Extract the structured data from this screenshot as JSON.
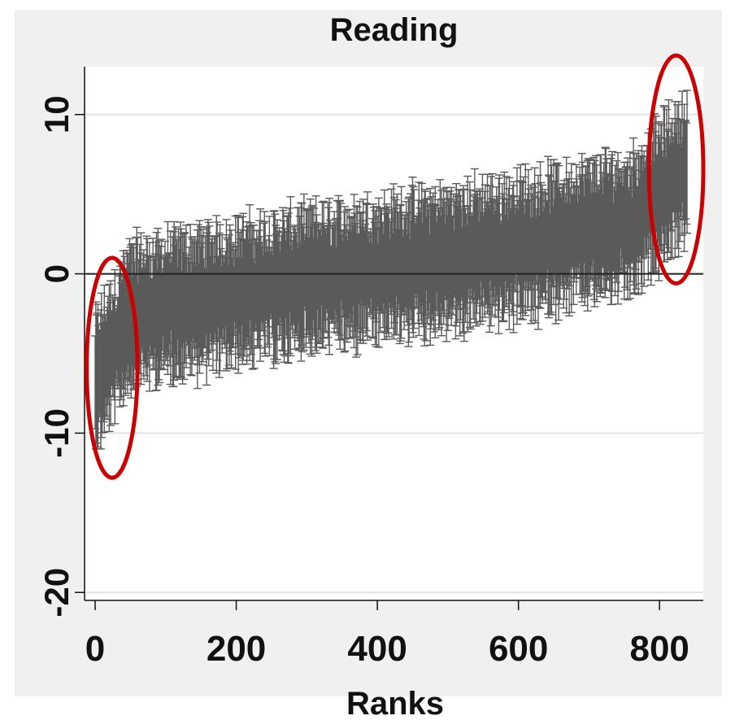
{
  "chart_data": {
    "type": "scatter",
    "title": "Reading",
    "xlabel": "Ranks",
    "ylabel": "",
    "xlim": [
      -15,
      862
    ],
    "ylim": [
      -20.5,
      13
    ],
    "x_ticks": [
      0,
      200,
      400,
      600,
      800
    ],
    "y_ticks": [
      -20,
      -10,
      0,
      10
    ],
    "y_gridlines": true,
    "x_gridlines": false,
    "reference_line_y": 0,
    "n_points": 840,
    "point_estimate_trend": [
      {
        "rank": 0,
        "value": -7
      },
      {
        "rank": 50,
        "value": -2.5
      },
      {
        "rank": 200,
        "value": -1.2
      },
      {
        "rank": 400,
        "value": 0.3
      },
      {
        "rank": 600,
        "value": 1.6
      },
      {
        "rank": 760,
        "value": 3.2
      },
      {
        "rank": 840,
        "value": 6.8
      }
    ],
    "ci_half_width_range": [
      2,
      5
    ],
    "extreme_points": {
      "min_lower": -11,
      "max_upper": 12
    },
    "annotations": [
      {
        "type": "ellipse",
        "color": "#cc0000",
        "rank_range": [
          -12,
          60
        ],
        "value_range": [
          -12.8,
          1
        ]
      },
      {
        "type": "ellipse",
        "color": "#cc0000",
        "rank_range": [
          785,
          862
        ],
        "value_range": [
          -0.6,
          13.7
        ]
      }
    ],
    "colors": {
      "background": "#f0f0f0",
      "plot_area": "#ffffff",
      "error_bar": "#5a5a5a",
      "gridline": "#e4e4e4",
      "annotation": "#cc0000"
    }
  }
}
